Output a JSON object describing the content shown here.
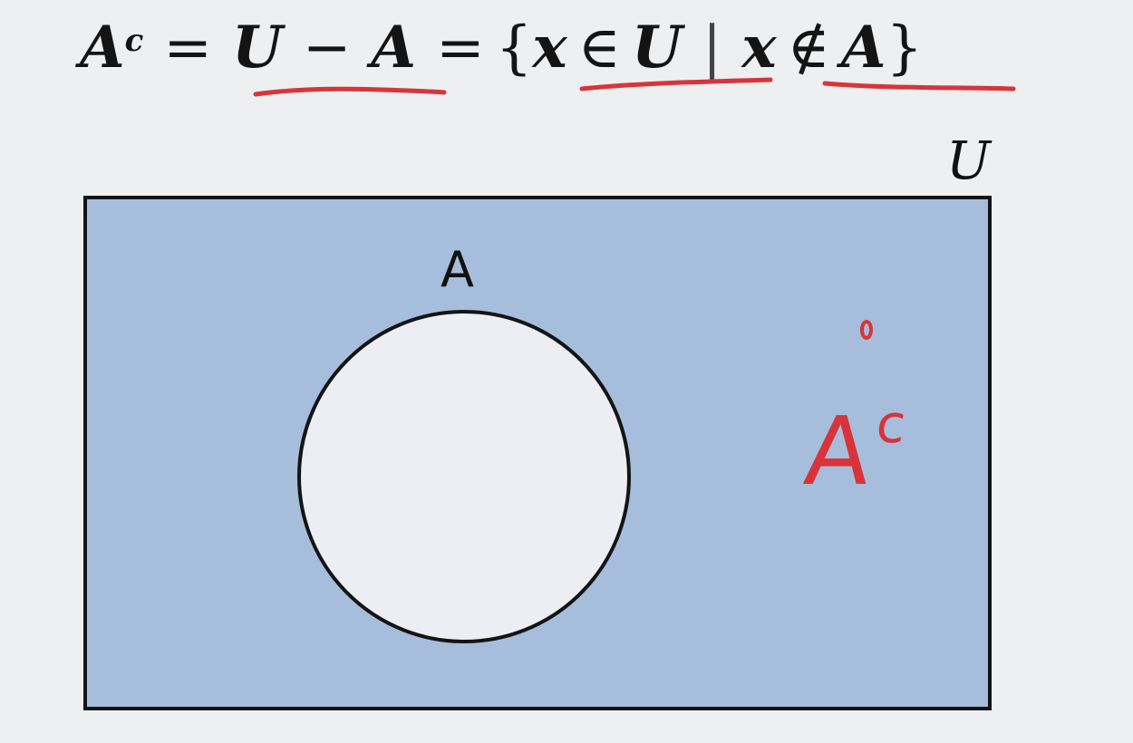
{
  "formula": {
    "lhs": "A",
    "lhs_sup": "c",
    "eq1": "=",
    "u": "U",
    "minus": "−",
    "a": "A",
    "eq2": "=",
    "open_brace": "{",
    "x1": "x",
    "in": "∈",
    "u2": "U",
    "bar": "|",
    "x2": "x",
    "notin": "∉",
    "a2": "A",
    "close_brace": "}"
  },
  "diagram": {
    "universe_label": "U",
    "set_label": "A",
    "universe_fill": "#a6bedc",
    "set_fill": "#eceef3",
    "outline": "#141414"
  },
  "annotation": {
    "base": "A",
    "sup": "c",
    "ink_color": "#d8343a"
  }
}
